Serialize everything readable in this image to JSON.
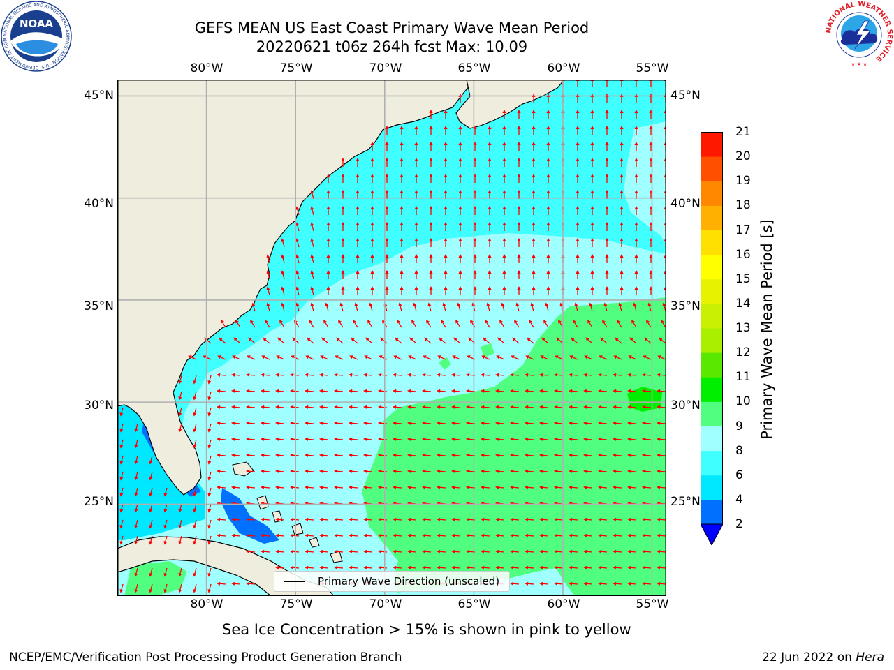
{
  "header": {
    "title_line1": "GEFS MEAN US East Coast Primary Wave Mean Period",
    "title_line2": "20220621 t06z 264h fcst   Max: 10.09"
  },
  "logos": {
    "noaa_text": "NOAA",
    "noaa_ring_text": "NATIONAL OCEANIC AND ATMOSPHERIC ADMINISTRATION · U.S. DEPARTMENT OF COMMERCE",
    "nws_ring_text": "NATIONAL WEATHER SERVICE"
  },
  "axes": {
    "lon_ticks": [
      "80°W",
      "75°W",
      "70°W",
      "65°W",
      "60°W",
      "55°W"
    ],
    "lat_ticks": [
      "45°N",
      "40°N",
      "35°N",
      "30°N",
      "25°N"
    ],
    "lon_values": [
      -80,
      -75,
      -70,
      -65,
      -60,
      -55
    ],
    "lat_values": [
      45,
      40,
      35,
      30,
      25
    ],
    "lon_range": [
      -85,
      -54.2
    ],
    "lat_range": [
      20.5,
      45.8
    ],
    "grid": true
  },
  "map": {
    "land_color": "#efedde",
    "coastline_color": "#000000",
    "arrow_color": "#ff0000",
    "grid_color": "#b0b0b0"
  },
  "legend": {
    "label": "Primary Wave Direction (unscaled)"
  },
  "colorbar": {
    "title": "Primary Wave Mean Period [s]",
    "levels": [
      "2",
      "4",
      "6",
      "8",
      "9",
      "10",
      "11",
      "12",
      "13",
      "14",
      "15",
      "16",
      "17",
      "18",
      "19",
      "20",
      "21"
    ],
    "colors": [
      "#0070ff",
      "#00e8ff",
      "#40ffff",
      "#a0ffff",
      "#50ff80",
      "#00ee00",
      "#5ae800",
      "#aaee00",
      "#c8f000",
      "#e6f200",
      "#ffff00",
      "#ffe000",
      "#ffb000",
      "#ff8800",
      "#ff5000",
      "#ff1800"
    ],
    "under_color": "#0000ff"
  },
  "chart_data": {
    "type": "heatmap",
    "field": "Primary Wave Mean Period",
    "max_value": 10.09,
    "region_values": [
      {
        "region": "Gulf of Maine / New England offshore",
        "period_s": [
          6,
          8
        ]
      },
      {
        "region": "Far NE corner near 55W 42N",
        "period_s": [
          8,
          9
        ]
      },
      {
        "region": "Mid-Atlantic shelf",
        "period_s": [
          6,
          8
        ]
      },
      {
        "region": "South Atlantic Bight",
        "period_s": [
          8,
          9
        ]
      },
      {
        "region": "Sargasso Sea (east of 71W, south of 35N)",
        "period_s": [
          9,
          10
        ]
      },
      {
        "region": "Patch near 55W 30N",
        "period_s": [
          10,
          11
        ]
      },
      {
        "region": "Gulf of Mexico (east)",
        "period_s": [
          4,
          6
        ]
      },
      {
        "region": "Great Bahama Bank / Florida Strait",
        "period_s": [
          2,
          4
        ]
      }
    ]
  },
  "footer": {
    "sea_ice_note": "Sea Ice Concentration > 15% is shown in pink to yellow",
    "credit": "NCEP/EMC/Verification Post Processing Product Generation Branch",
    "date": "22 Jun 2022 on ",
    "machine": "Hera"
  }
}
